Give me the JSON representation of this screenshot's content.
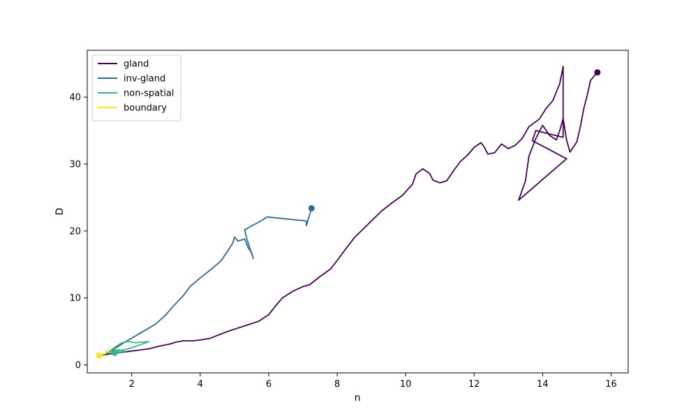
{
  "chart_data": {
    "type": "line",
    "title": "",
    "xlabel": "n",
    "ylabel": "D",
    "xlim": [
      0.7,
      16.5
    ],
    "ylim": [
      -1.2,
      47
    ],
    "xticks": [
      2,
      4,
      6,
      8,
      10,
      12,
      14,
      16
    ],
    "yticks": [
      0,
      10,
      20,
      30,
      40
    ],
    "grid": false,
    "legend_position": "top-left",
    "series": [
      {
        "name": "gland",
        "color": "#440154",
        "points": [
          [
            1.1,
            1.4
          ],
          [
            1.3,
            1.6
          ],
          [
            1.6,
            1.8
          ],
          [
            1.9,
            2.0
          ],
          [
            2.2,
            2.2
          ],
          [
            2.5,
            2.4
          ],
          [
            2.8,
            2.8
          ],
          [
            3.1,
            3.1
          ],
          [
            3.3,
            3.4
          ],
          [
            3.5,
            3.6
          ],
          [
            3.8,
            3.6
          ],
          [
            4.1,
            3.8
          ],
          [
            4.3,
            4.0
          ],
          [
            4.5,
            4.4
          ],
          [
            4.8,
            5.0
          ],
          [
            5.1,
            5.5
          ],
          [
            5.4,
            6.0
          ],
          [
            5.7,
            6.5
          ],
          [
            6.0,
            7.5
          ],
          [
            6.2,
            8.8
          ],
          [
            6.4,
            10.0
          ],
          [
            6.7,
            11.0
          ],
          [
            7.0,
            11.7
          ],
          [
            7.2,
            12.0
          ],
          [
            7.5,
            13.2
          ],
          [
            7.8,
            14.3
          ],
          [
            8.0,
            15.6
          ],
          [
            8.2,
            17.0
          ],
          [
            8.5,
            19.0
          ],
          [
            8.8,
            20.5
          ],
          [
            9.0,
            21.5
          ],
          [
            9.3,
            23.0
          ],
          [
            9.6,
            24.2
          ],
          [
            9.9,
            25.3
          ],
          [
            10.2,
            27.0
          ],
          [
            10.3,
            28.5
          ],
          [
            10.5,
            29.3
          ],
          [
            10.7,
            28.6
          ],
          [
            10.8,
            27.6
          ],
          [
            11.0,
            27.2
          ],
          [
            11.2,
            27.5
          ],
          [
            11.4,
            29.0
          ],
          [
            11.6,
            30.4
          ],
          [
            11.8,
            31.3
          ],
          [
            12.0,
            32.5
          ],
          [
            12.2,
            33.2
          ],
          [
            12.3,
            32.5
          ],
          [
            12.4,
            31.5
          ],
          [
            12.6,
            31.7
          ],
          [
            12.8,
            33.0
          ],
          [
            13.0,
            32.3
          ],
          [
            13.2,
            32.8
          ],
          [
            13.4,
            33.8
          ],
          [
            13.6,
            35.6
          ],
          [
            13.9,
            36.7
          ],
          [
            14.1,
            38.3
          ],
          [
            14.3,
            39.5
          ],
          [
            14.5,
            42.0
          ],
          [
            14.6,
            44.6
          ],
          [
            14.6,
            34.0
          ],
          [
            13.8,
            35.0
          ],
          [
            13.7,
            33.5
          ],
          [
            14.7,
            30.8
          ],
          [
            13.3,
            24.6
          ],
          [
            13.5,
            27.5
          ],
          [
            13.6,
            31.2
          ],
          [
            13.8,
            33.8
          ],
          [
            14.0,
            35.8
          ],
          [
            14.2,
            34.3
          ],
          [
            14.4,
            33.6
          ],
          [
            14.5,
            35.0
          ],
          [
            14.6,
            36.8
          ],
          [
            14.7,
            33.6
          ],
          [
            14.8,
            31.8
          ],
          [
            15.0,
            33.3
          ],
          [
            15.1,
            35.5
          ],
          [
            15.2,
            38.2
          ],
          [
            15.3,
            40.2
          ],
          [
            15.4,
            42.5
          ],
          [
            15.6,
            43.7
          ]
        ]
      },
      {
        "name": "inv-gland",
        "color": "#31688e",
        "points": [
          [
            1.2,
            1.5
          ],
          [
            1.5,
            2.4
          ],
          [
            1.8,
            3.4
          ],
          [
            2.1,
            4.3
          ],
          [
            2.4,
            5.2
          ],
          [
            2.7,
            6.1
          ],
          [
            3.0,
            7.5
          ],
          [
            3.2,
            8.7
          ],
          [
            3.5,
            10.3
          ],
          [
            3.7,
            11.7
          ],
          [
            4.0,
            13.0
          ],
          [
            4.3,
            14.2
          ],
          [
            4.6,
            15.5
          ],
          [
            4.8,
            17.0
          ],
          [
            4.95,
            18.2
          ],
          [
            5.0,
            19.1
          ],
          [
            5.1,
            18.5
          ],
          [
            5.3,
            18.8
          ],
          [
            5.4,
            17.5
          ],
          [
            5.5,
            16.8
          ],
          [
            5.55,
            15.9
          ],
          [
            5.45,
            17.4
          ],
          [
            5.35,
            19.0
          ],
          [
            5.3,
            20.2
          ],
          [
            5.8,
            21.6
          ],
          [
            5.95,
            22.1
          ],
          [
            7.1,
            21.5
          ],
          [
            7.1,
            20.8
          ],
          [
            7.25,
            23.4
          ]
        ]
      },
      {
        "name": "non-spatial",
        "color": "#35b779",
        "points": [
          [
            1.1,
            1.3
          ],
          [
            1.3,
            1.8
          ],
          [
            1.5,
            2.6
          ],
          [
            1.7,
            3.3
          ],
          [
            1.9,
            3.5
          ],
          [
            2.1,
            3.3
          ],
          [
            2.3,
            3.4
          ],
          [
            2.5,
            3.5
          ],
          [
            2.3,
            3.1
          ],
          [
            1.9,
            2.4
          ],
          [
            1.6,
            2.1
          ],
          [
            1.4,
            1.8
          ],
          [
            1.6,
            2.3
          ],
          [
            1.8,
            2.0
          ],
          [
            1.5,
            1.8
          ]
        ]
      },
      {
        "name": "boundary",
        "color": "#fde725",
        "points": [
          [
            1.0,
            1.2
          ],
          [
            1.1,
            1.5
          ],
          [
            1.2,
            1.7
          ],
          [
            1.3,
            2.3
          ],
          [
            1.25,
            1.8
          ],
          [
            1.15,
            1.6
          ],
          [
            1.05,
            1.4
          ]
        ]
      }
    ]
  }
}
